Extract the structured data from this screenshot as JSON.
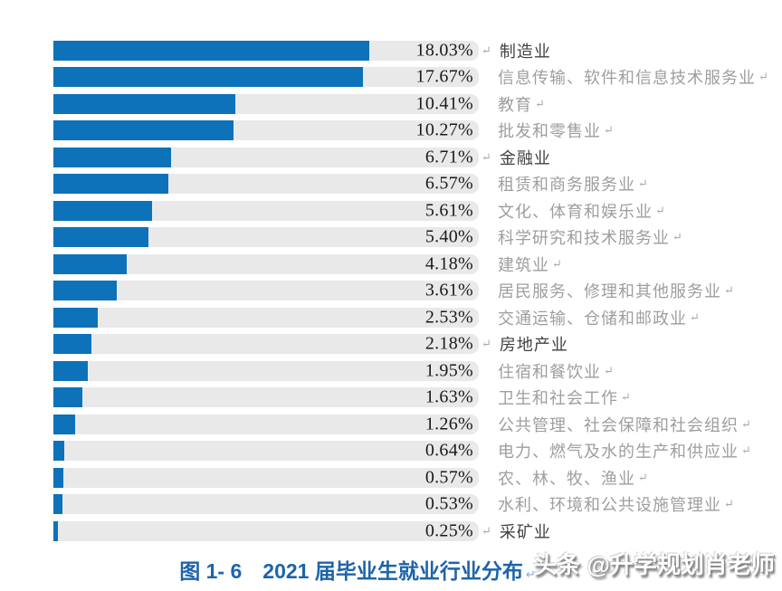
{
  "chart_data": {
    "type": "bar",
    "orientation": "horizontal",
    "title": "图 1- 6　2021 届毕业生就业行业分布",
    "categories": [
      "制造业",
      "信息传输、软件和信息技术服务业",
      "教育",
      "批发和零售业",
      "金融业",
      "租赁和商务服务业",
      "文化、体育和娱乐业",
      "科学研究和技术服务业",
      "建筑业",
      "居民服务、修理和其他服务业",
      "交通运输、仓储和邮政业",
      "房地产业",
      "住宿和餐饮业",
      "卫生和社会工作",
      "公共管理、社会保障和社会组织",
      "电力、燃气及水的生产和供应业",
      "农、林、牧、渔业",
      "水利、环境和公共设施管理业",
      "采矿业"
    ],
    "values": [
      18.03,
      17.67,
      10.41,
      10.27,
      6.71,
      6.57,
      5.61,
      5.4,
      4.18,
      3.61,
      2.53,
      2.18,
      1.95,
      1.63,
      1.26,
      0.64,
      0.57,
      0.53,
      0.25
    ],
    "value_labels": [
      "18.03%",
      "17.67%",
      "10.41%",
      "10.27%",
      "6.71%",
      "6.57%",
      "5.61%",
      "5.40%",
      "4.18%",
      "3.61%",
      "2.53%",
      "2.18%",
      "1.95%",
      "1.63%",
      "1.26%",
      "0.64%",
      "0.57%",
      "0.53%",
      "0.25%"
    ],
    "emphasized_rows": [
      0,
      4,
      11,
      18
    ],
    "xlim": [
      0,
      24.3
    ],
    "grid": false,
    "legend": false,
    "bar_color": "#0d72b9",
    "track_color": "#e9e9e9",
    "return_mark": "↵"
  },
  "caption": {
    "text": "图 1- 6　2021 届毕业生就业行业分布",
    "return_mark": "↵",
    "color": "#1d64ab"
  },
  "watermark": {
    "text": "头条 @升学规划肖老师"
  },
  "colors": {
    "bar": "#0d72b9",
    "track": "#e9e9e9",
    "value_text": "#1a1a1a",
    "label_gray": "#9e9e9e",
    "label_dark": "#424242",
    "return_mark": "#a8a8b2"
  }
}
